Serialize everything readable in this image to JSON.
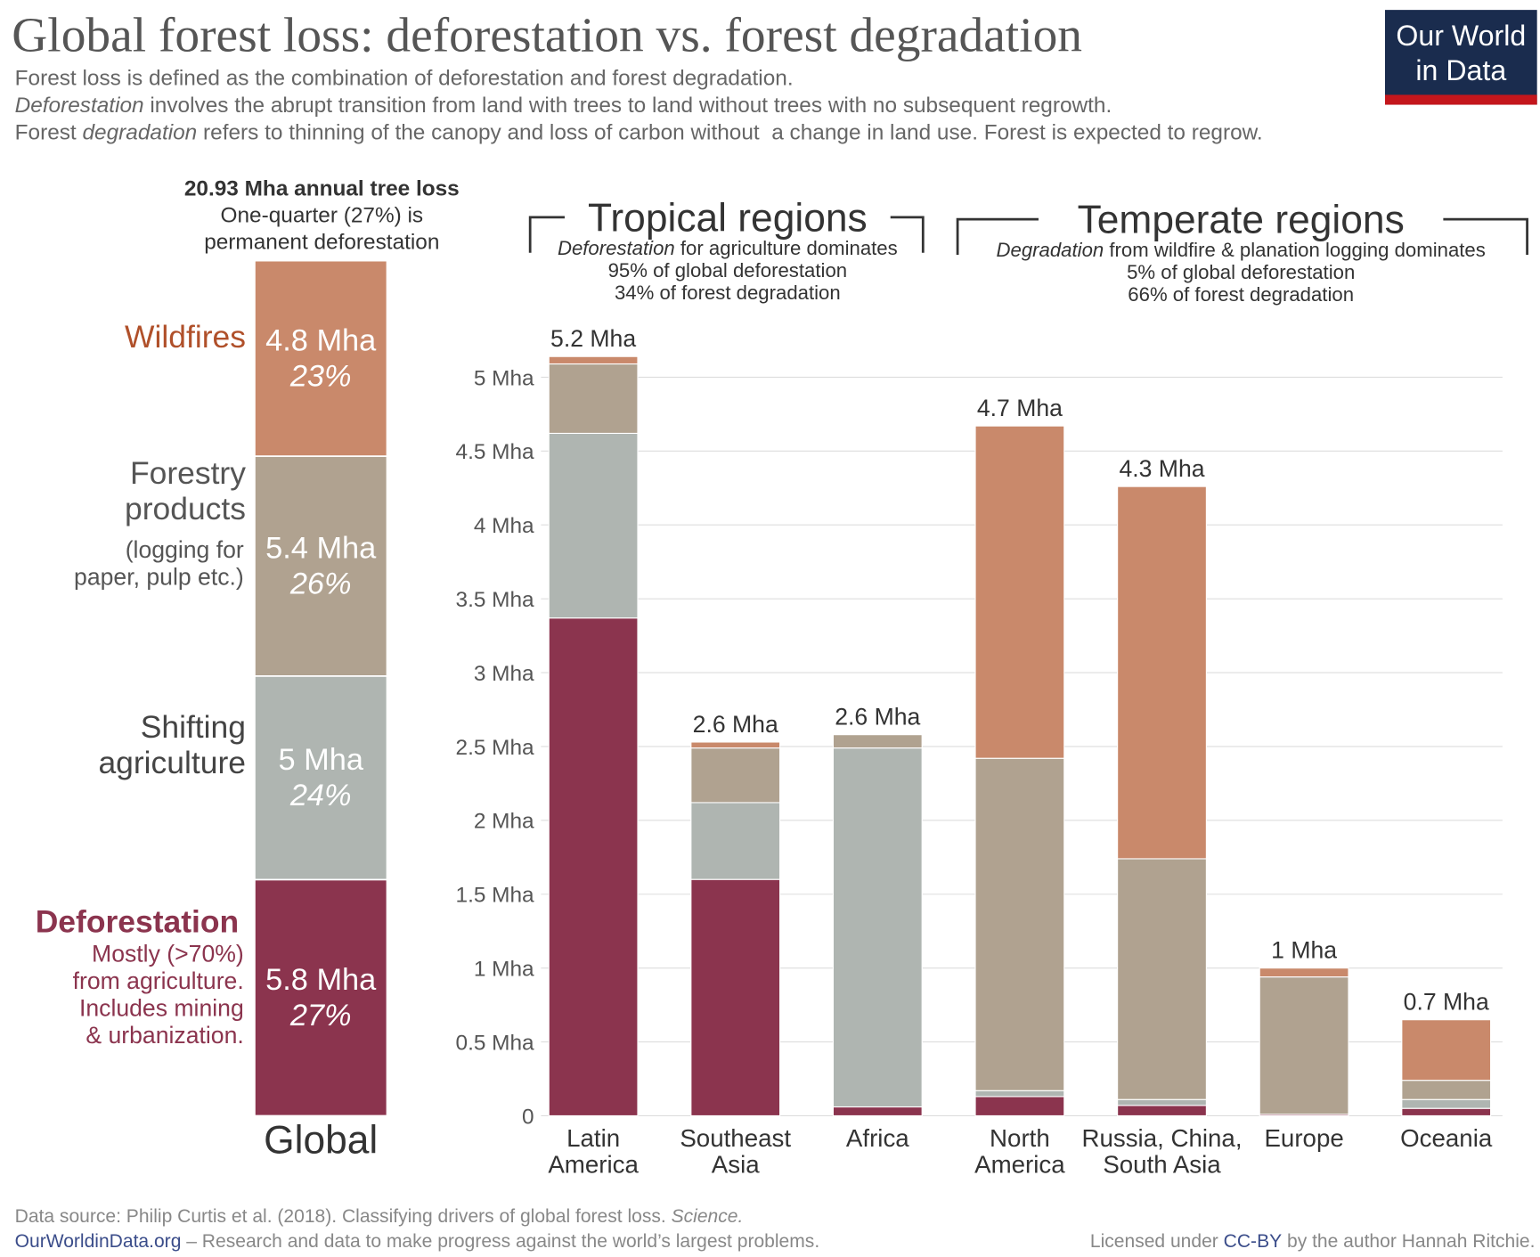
{
  "header": {
    "title": "Global forest loss: deforestation vs. forest degradation",
    "subtitle": [
      [
        "Forest loss is defined as the combination of deforestation and forest degradation."
      ],
      [
        "Deforestation",
        " involves the abrupt transition from land with trees to land without trees with no subsequent regrowth."
      ],
      [
        "Forest ",
        "degradation",
        " refers to thinning of the canopy and loss of carbon without  a change in land use. Forest is expected to regrow."
      ]
    ]
  },
  "logo": [
    "Our World",
    "in Data"
  ],
  "global": {
    "header": [
      "20.93 Mha annual tree loss",
      "One-quarter (27%) is",
      "permanent deforestation"
    ],
    "label": "Global",
    "segments": [
      {
        "name": [
          "Deforestation"
        ],
        "description": [
          "Mostly (>70%)",
          "from agriculture.",
          "Includes mining",
          "& urbanization."
        ],
        "label_color": "#8b344e",
        "value": 5.8,
        "value_label": "5.8 Mha",
        "percent": 27,
        "percent_label": "27%"
      },
      {
        "name": [
          "Shifting",
          "agriculture"
        ],
        "description": [],
        "label_color": "#444444",
        "value": 5,
        "value_label": "5 Mha",
        "percent": 24,
        "percent_label": "24%"
      },
      {
        "name": [
          "Forestry",
          "products"
        ],
        "description": [
          "(logging for",
          "paper, pulp etc.)"
        ],
        "label_color": "#555555",
        "value": 5.4,
        "value_label": "5.4 Mha",
        "percent": 26,
        "percent_label": "26%"
      },
      {
        "name": [
          "Wildfires"
        ],
        "description": [],
        "label_color": "#b0502a",
        "value": 4.8,
        "value_label": "4.8 Mha",
        "percent": 23,
        "percent_label": "23%"
      }
    ]
  },
  "chart_data": {
    "type": "stacked_bar",
    "categories": [
      [
        "Latin",
        "America"
      ],
      [
        "Southeast",
        "Asia"
      ],
      [
        "Africa"
      ],
      [
        "North",
        "America"
      ],
      [
        "Russia, China,",
        "South Asia"
      ],
      [
        "Europe"
      ],
      [
        "Oceania"
      ]
    ],
    "series": [
      {
        "color": "#8b344e",
        "values": [
          3.37,
          1.6,
          0.06,
          0.13,
          0.07,
          0.01,
          0.05
        ]
      },
      {
        "color": "#afb5b1",
        "values": [
          1.25,
          0.52,
          2.43,
          0.04,
          0.04,
          0,
          0.06
        ]
      },
      {
        "color": "#b0a290",
        "values": [
          0.47,
          0.37,
          0.09,
          2.25,
          1.63,
          0.93,
          0.13
        ]
      },
      {
        "color": "#c9896b",
        "values": [
          0.05,
          0.04,
          0,
          2.25,
          2.52,
          0.06,
          0.41
        ]
      }
    ],
    "totals": {
      "values": [
        5.2,
        2.6,
        2.6,
        4.7,
        4.3,
        1,
        0.7
      ],
      "value_labels": [
        "5.2 Mha",
        "2.6 Mha",
        "2.6 Mha",
        "4.7 Mha",
        "4.3 Mha",
        "1 Mha",
        "0.7 Mha"
      ]
    },
    "ylim": [
      0,
      5
    ],
    "yticks": [
      0,
      {
        "value": 0.5,
        "label": "0.5 Mha"
      },
      {
        "value": 1,
        "label": "1 Mha"
      },
      {
        "value": 1.5,
        "label": "1.5 Mha"
      },
      {
        "value": 2,
        "label": "2 Mha"
      },
      {
        "value": 2.5,
        "label": "2.5 Mha"
      },
      {
        "value": 3,
        "label": "3 Mha"
      },
      {
        "value": 3.5,
        "label": "3.5 Mha"
      },
      {
        "value": 4,
        "label": "4 Mha"
      },
      {
        "value": 4.5,
        "label": "4.5 Mha"
      },
      {
        "value": 5,
        "label": "5 Mha"
      }
    ],
    "grid": true,
    "groups": [
      {
        "title": "Tropical regions",
        "subtitle": [
          [
            "Deforestation",
            " for agriculture dominates"
          ],
          [
            "95% of global deforestation"
          ],
          [
            "34% of forest degradation"
          ]
        ]
      },
      {
        "title": "Temperate regions",
        "subtitle": [
          [
            "Degradation",
            " from wildfire & planation logging dominates"
          ],
          [
            "5% of global deforestation"
          ],
          [
            "66% of forest degradation"
          ]
        ]
      }
    ]
  },
  "footer": {
    "source": [
      "Data source: Philip Curtis et al. (2018). Classifying drivers of global forest loss. ",
      "Science."
    ],
    "site": "OurWorldinData.org",
    "tagline": " – Research and data to make progress against the world’s largest problems.",
    "license": [
      "Licensed under ",
      "CC-BY",
      " by the author Hannah Ritchie."
    ]
  }
}
